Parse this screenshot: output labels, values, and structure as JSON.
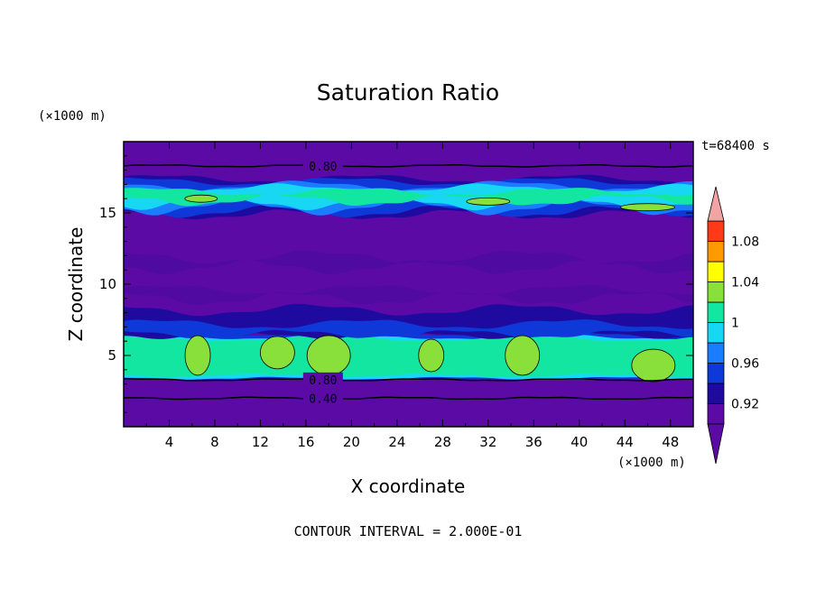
{
  "chart_data": {
    "type": "heatmap",
    "title": "Saturation Ratio",
    "xlabel": "X coordinate",
    "ylabel": "Z coordinate",
    "x_unit": "(×1000 m)",
    "y_unit": "(×1000 m)",
    "time_label": "t=68400 s",
    "footer": "CONTOUR INTERVAL = 2.000E-01",
    "xlim": [
      0,
      50
    ],
    "ylim": [
      0,
      20
    ],
    "x_ticks": [
      4,
      8,
      12,
      16,
      20,
      24,
      28,
      32,
      36,
      40,
      44,
      48
    ],
    "y_ticks": [
      5,
      10,
      15
    ],
    "colorbar": {
      "tick_labels": [
        "0.92",
        "0.96",
        "1",
        "1.04",
        "1.08"
      ],
      "levels": [
        0.9,
        0.92,
        0.94,
        0.96,
        0.98,
        1.0,
        1.02,
        1.04,
        1.06,
        1.08,
        1.1
      ],
      "colors": [
        "#5b0aa6",
        "#1f0aa0",
        "#0f38d8",
        "#1a7cff",
        "#18d7f2",
        "#12e6a0",
        "#8ae03a",
        "#ffff00",
        "#ff9a00",
        "#ff3a1a",
        "#f06a6a",
        "#f2a3a3"
      ],
      "extend": "both"
    },
    "contour_lines": [
      {
        "value": "0.80",
        "z": 18.3
      },
      {
        "value": "0.80",
        "z": 3.3
      },
      {
        "value": "0.40",
        "z": 2.0
      }
    ],
    "bands": [
      {
        "z_min": 0,
        "z_max": 3.3,
        "level": "<0.92"
      },
      {
        "z_min": 3.3,
        "z_max": 6.4,
        "level": "0.98-1.0"
      },
      {
        "z_min": 6.4,
        "z_max": 8.2,
        "level": "0.92-0.96"
      },
      {
        "z_min": 8.2,
        "z_max": 15.0,
        "level": "<0.92"
      },
      {
        "z_min": 15.0,
        "z_max": 17.3,
        "level": "0.96-1.0"
      },
      {
        "z_min": 17.3,
        "z_max": 20,
        "level": "<0.92"
      }
    ],
    "supersaturated_patches": [
      {
        "x_center": 6.5,
        "z_center": 5.0
      },
      {
        "x_center": 13.5,
        "z_center": 5.2
      },
      {
        "x_center": 18.0,
        "z_center": 5.0
      },
      {
        "x_center": 27.0,
        "z_center": 5.0
      },
      {
        "x_center": 35.0,
        "z_center": 5.0
      },
      {
        "x_center": 46.5,
        "z_center": 4.3
      },
      {
        "x_center": 6.8,
        "z_center": 16.0
      },
      {
        "x_center": 32.0,
        "z_center": 15.8
      },
      {
        "x_center": 46.0,
        "z_center": 15.4
      }
    ]
  }
}
